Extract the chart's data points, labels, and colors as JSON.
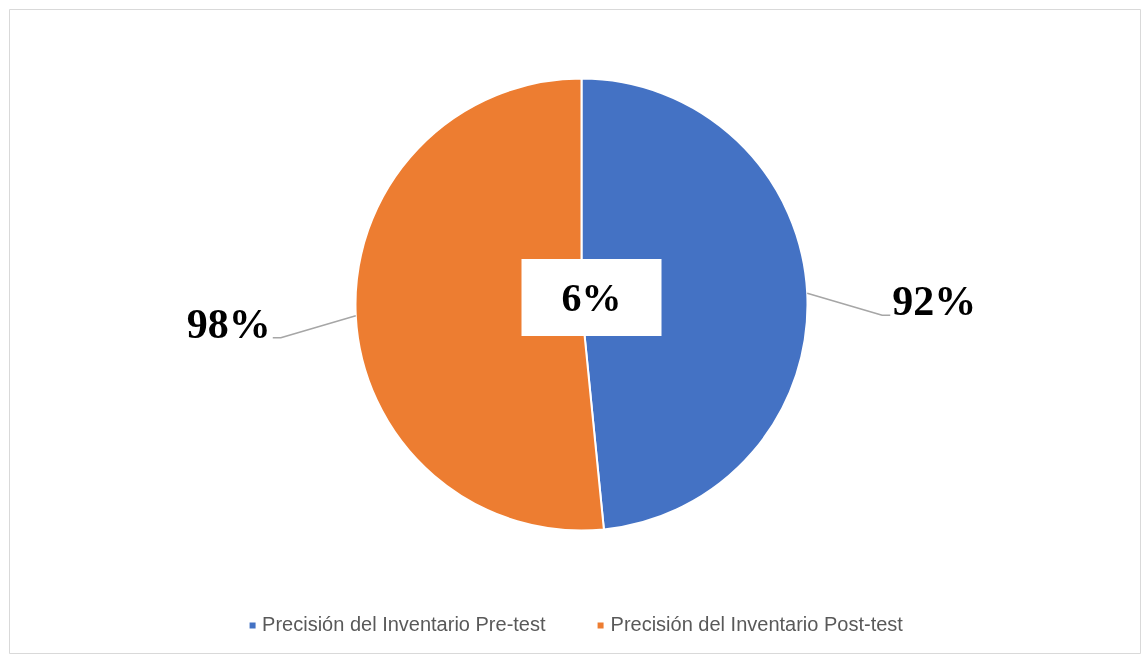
{
  "chart_data": {
    "type": "pie",
    "categories": [
      "Precisión del Inventario Pre-test",
      "Precisión del Inventario Post-test"
    ],
    "values": [
      92,
      98
    ],
    "colors": [
      "#4472c4",
      "#ed7d31"
    ],
    "value_labels": [
      "92%",
      "98%"
    ],
    "annotations": [
      "6%"
    ],
    "legend": "bottom"
  }
}
